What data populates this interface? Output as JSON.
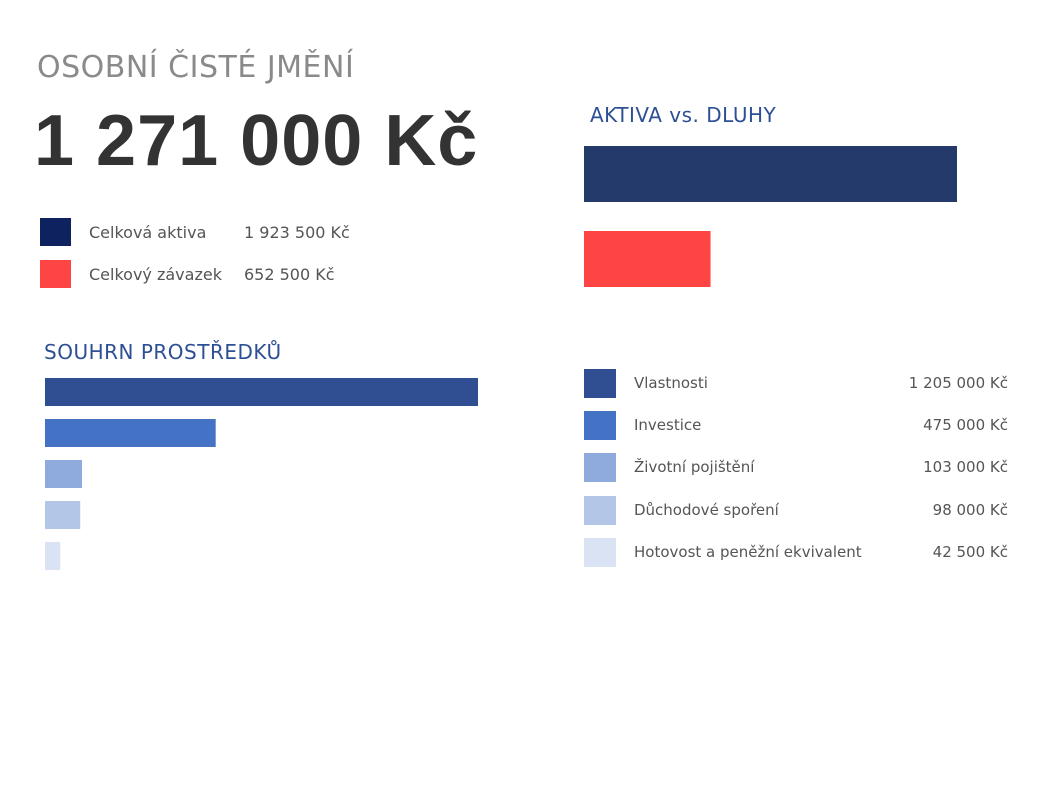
{
  "title": "OSOBNÍ ČISTÉ JMĚNÍ",
  "net_worth": "1 271 000 Kč",
  "summary_legend": [
    {
      "label": "Celková aktiva",
      "value": "1 923 500 Kč",
      "color": "#0e2260"
    },
    {
      "label": "Celkový závazek",
      "value": "652 500 Kč",
      "color": "#ff4444"
    }
  ],
  "assets_section_title": "SOUHRN PROSTŘEDKŮ",
  "asset_legend": [
    {
      "label": "Vlastnosti",
      "value": "1 205 000 Kč",
      "color": "#2f4f92"
    },
    {
      "label": "Investice",
      "value": "475 000 Kč",
      "color": "#4472c4"
    },
    {
      "label": "Životní pojištění",
      "value": "103 000 Kč",
      "color": "#8faadc"
    },
    {
      "label": "Důchodové spoření",
      "value": "98 000 Kč",
      "color": "#b4c6e7"
    },
    {
      "label": "Hotovost a peněžní ekvivalent",
      "value": "42 500 Kč",
      "color": "#dae3f3"
    }
  ],
  "chart_data": [
    {
      "type": "bar",
      "orientation": "horizontal",
      "title": "AKTIVA vs. DLUHY",
      "categories": [
        "Celková aktiva",
        "Celkový závazek"
      ],
      "values": [
        1923500,
        652500
      ],
      "colors": [
        "#233a6b",
        "#ff4444"
      ],
      "xlim": [
        0,
        1923500
      ],
      "grid": false
    },
    {
      "type": "bar",
      "orientation": "horizontal",
      "title": "SOUHRN PROSTŘEDKŮ",
      "categories": [
        "Vlastnosti",
        "Investice",
        "Životní pojištění",
        "Důchodové spoření",
        "Hotovost a peněžní ekvivalent"
      ],
      "values": [
        1205000,
        475000,
        103000,
        98000,
        42500
      ],
      "colors": [
        "#2f4f92",
        "#4472c4",
        "#8faadc",
        "#b4c6e7",
        "#dae3f3"
      ],
      "xlim": [
        0,
        1205000
      ],
      "grid": false
    }
  ]
}
